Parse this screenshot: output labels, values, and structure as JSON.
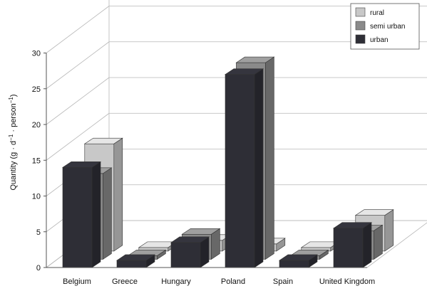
{
  "chart_data": {
    "type": "bar",
    "subtype": "3d-clustered",
    "title": "",
    "xlabel": "",
    "ylabel_parts": {
      "prefix": "Quantity (g · d",
      "exp1": "−1",
      "mid": " · person",
      "exp2": "−1",
      "suffix": ")"
    },
    "ylim": [
      0,
      30
    ],
    "yticks": [
      "0",
      "5",
      "10",
      "15",
      "20",
      "25",
      "30"
    ],
    "grid": true,
    "legend_position": "top-right",
    "categories": [
      "Belgium",
      "Greece",
      "Hungary",
      "Poland",
      "Spain",
      "United Kingdom"
    ],
    "series": [
      {
        "name": "rural",
        "color": "#c8c8c8",
        "values": [
          15,
          0.5,
          1.5,
          1.0,
          0.5,
          5
        ]
      },
      {
        "name": "semi urban",
        "color": "#8a8a8a",
        "values": [
          12,
          0.5,
          3.5,
          27.5,
          0.5,
          4
        ]
      },
      {
        "name": "urban",
        "color": "#2e2e36",
        "values": [
          14,
          1,
          3.5,
          27,
          1,
          5.5
        ]
      }
    ]
  }
}
